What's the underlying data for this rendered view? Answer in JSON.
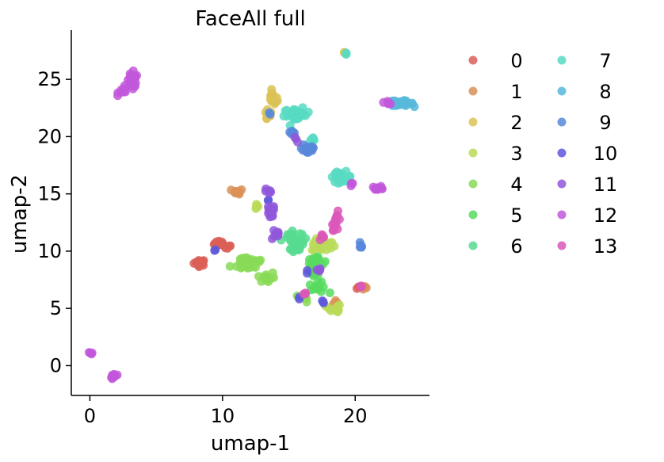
{
  "chart_data": {
    "type": "scatter",
    "title": "FaceAll full",
    "xlabel": "umap-1",
    "ylabel": "umap-2",
    "xlim": [
      -1.4,
      25.6
    ],
    "ylim": [
      -2.6,
      29.3
    ],
    "xticks": [
      0,
      10,
      20
    ],
    "yticks": [
      0,
      5,
      10,
      15,
      20,
      25
    ],
    "grid": false,
    "legend": {
      "placement": "right",
      "columns": 2
    },
    "series": [
      {
        "name": "0",
        "color": "#db5f57",
        "clusters": [
          [
            8.3,
            9.0,
            0.4,
            0.25,
            24
          ],
          [
            9.8,
            10.6,
            0.4,
            0.25,
            16
          ],
          [
            10.4,
            10.3,
            0.2,
            0.2,
            5
          ],
          [
            20.3,
            6.8,
            0.2,
            0.15,
            3
          ]
        ]
      },
      {
        "name": "1",
        "color": "#db9157",
        "clusters": [
          [
            11.1,
            15.2,
            0.4,
            0.2,
            10
          ],
          [
            20.6,
            6.8,
            0.3,
            0.15,
            5
          ],
          [
            18.5,
            5.5,
            0.3,
            0.2,
            4
          ]
        ]
      },
      {
        "name": "2",
        "color": "#dbc257",
        "clusters": [
          [
            13.8,
            23.3,
            0.3,
            0.6,
            14
          ],
          [
            13.4,
            21.9,
            0.3,
            0.5,
            10
          ],
          [
            19.2,
            27.3,
            0.12,
            0.12,
            3
          ]
        ]
      },
      {
        "name": "3",
        "color": "#b9db57",
        "clusters": [
          [
            17.6,
            10.5,
            0.8,
            0.5,
            22
          ],
          [
            18.4,
            4.9,
            0.5,
            0.5,
            12
          ],
          [
            12.5,
            14.0,
            0.3,
            0.3,
            6
          ]
        ]
      },
      {
        "name": "4",
        "color": "#88db57",
        "clusters": [
          [
            12.0,
            9.0,
            1.2,
            0.7,
            26
          ],
          [
            13.3,
            7.7,
            0.6,
            0.5,
            14
          ],
          [
            16.2,
            5.9,
            0.3,
            0.3,
            6
          ]
        ]
      },
      {
        "name": "5",
        "color": "#57db5f",
        "clusters": [
          [
            17.0,
            9.2,
            0.6,
            0.5,
            14
          ],
          [
            17.2,
            6.8,
            0.6,
            0.4,
            14
          ],
          [
            16.9,
            8.0,
            0.3,
            0.3,
            6
          ]
        ]
      },
      {
        "name": "6",
        "color": "#57db91",
        "clusters": [
          [
            15.2,
            11.2,
            0.7,
            0.6,
            20
          ],
          [
            15.5,
            10.3,
            0.5,
            0.3,
            10
          ],
          [
            15.8,
            10.8,
            0.3,
            0.3,
            6
          ]
        ]
      },
      {
        "name": "7",
        "color": "#57dbc2",
        "clusters": [
          [
            15.6,
            21.9,
            0.9,
            0.5,
            30
          ],
          [
            18.9,
            16.5,
            0.8,
            0.4,
            20
          ],
          [
            16.8,
            19.7,
            0.2,
            0.3,
            5
          ],
          [
            19.3,
            27.3,
            0.12,
            0.12,
            2
          ]
        ]
      },
      {
        "name": "8",
        "color": "#57b9db",
        "clusters": [
          [
            23.6,
            22.9,
            0.7,
            0.2,
            26
          ],
          [
            22.8,
            23.0,
            0.3,
            0.2,
            6
          ]
        ]
      },
      {
        "name": "9",
        "color": "#5788db",
        "clusters": [
          [
            16.5,
            19.0,
            0.5,
            0.6,
            20
          ],
          [
            15.3,
            20.4,
            0.2,
            0.3,
            5
          ],
          [
            13.6,
            22.0,
            0.15,
            0.15,
            2
          ],
          [
            20.4,
            10.4,
            0.15,
            0.2,
            5
          ]
        ]
      },
      {
        "name": "10",
        "color": "#5f57db",
        "clusters": [
          [
            9.5,
            10.1,
            0.15,
            0.15,
            2
          ],
          [
            13.5,
            14.4,
            0.15,
            0.15,
            2
          ],
          [
            17.6,
            5.6,
            0.2,
            0.15,
            3
          ],
          [
            16.3,
            8.2,
            0.15,
            0.15,
            2
          ],
          [
            15.8,
            5.8,
            0.15,
            0.15,
            2
          ]
        ]
      },
      {
        "name": "11",
        "color": "#9157db",
        "clusters": [
          [
            13.6,
            13.3,
            0.3,
            0.7,
            14
          ],
          [
            14.0,
            11.4,
            0.5,
            0.4,
            8
          ],
          [
            13.5,
            15.2,
            0.3,
            0.3,
            6
          ],
          [
            17.2,
            8.3,
            0.2,
            0.2,
            4
          ],
          [
            15.5,
            19.7,
            0.2,
            0.2,
            3
          ]
        ]
      },
      {
        "name": "12",
        "color": "#c257db",
        "clusters": [
          [
            3.2,
            24.8,
            0.4,
            0.7,
            24
          ],
          [
            2.6,
            24.0,
            0.4,
            0.3,
            10
          ],
          [
            1.8,
            -0.9,
            0.2,
            0.25,
            12
          ],
          [
            0.1,
            1.1,
            0.1,
            0.1,
            4
          ],
          [
            21.7,
            15.5,
            0.4,
            0.15,
            12
          ],
          [
            22.5,
            23.0,
            0.3,
            0.15,
            5
          ],
          [
            19.7,
            15.8,
            0.15,
            0.15,
            3
          ]
        ]
      },
      {
        "name": "13",
        "color": "#db57b9",
        "clusters": [
          [
            18.6,
            12.6,
            0.3,
            0.7,
            16
          ],
          [
            17.6,
            11.2,
            0.3,
            0.3,
            6
          ],
          [
            16.1,
            6.3,
            0.2,
            0.15,
            3
          ],
          [
            20.4,
            6.9,
            0.2,
            0.1,
            3
          ]
        ]
      }
    ]
  }
}
